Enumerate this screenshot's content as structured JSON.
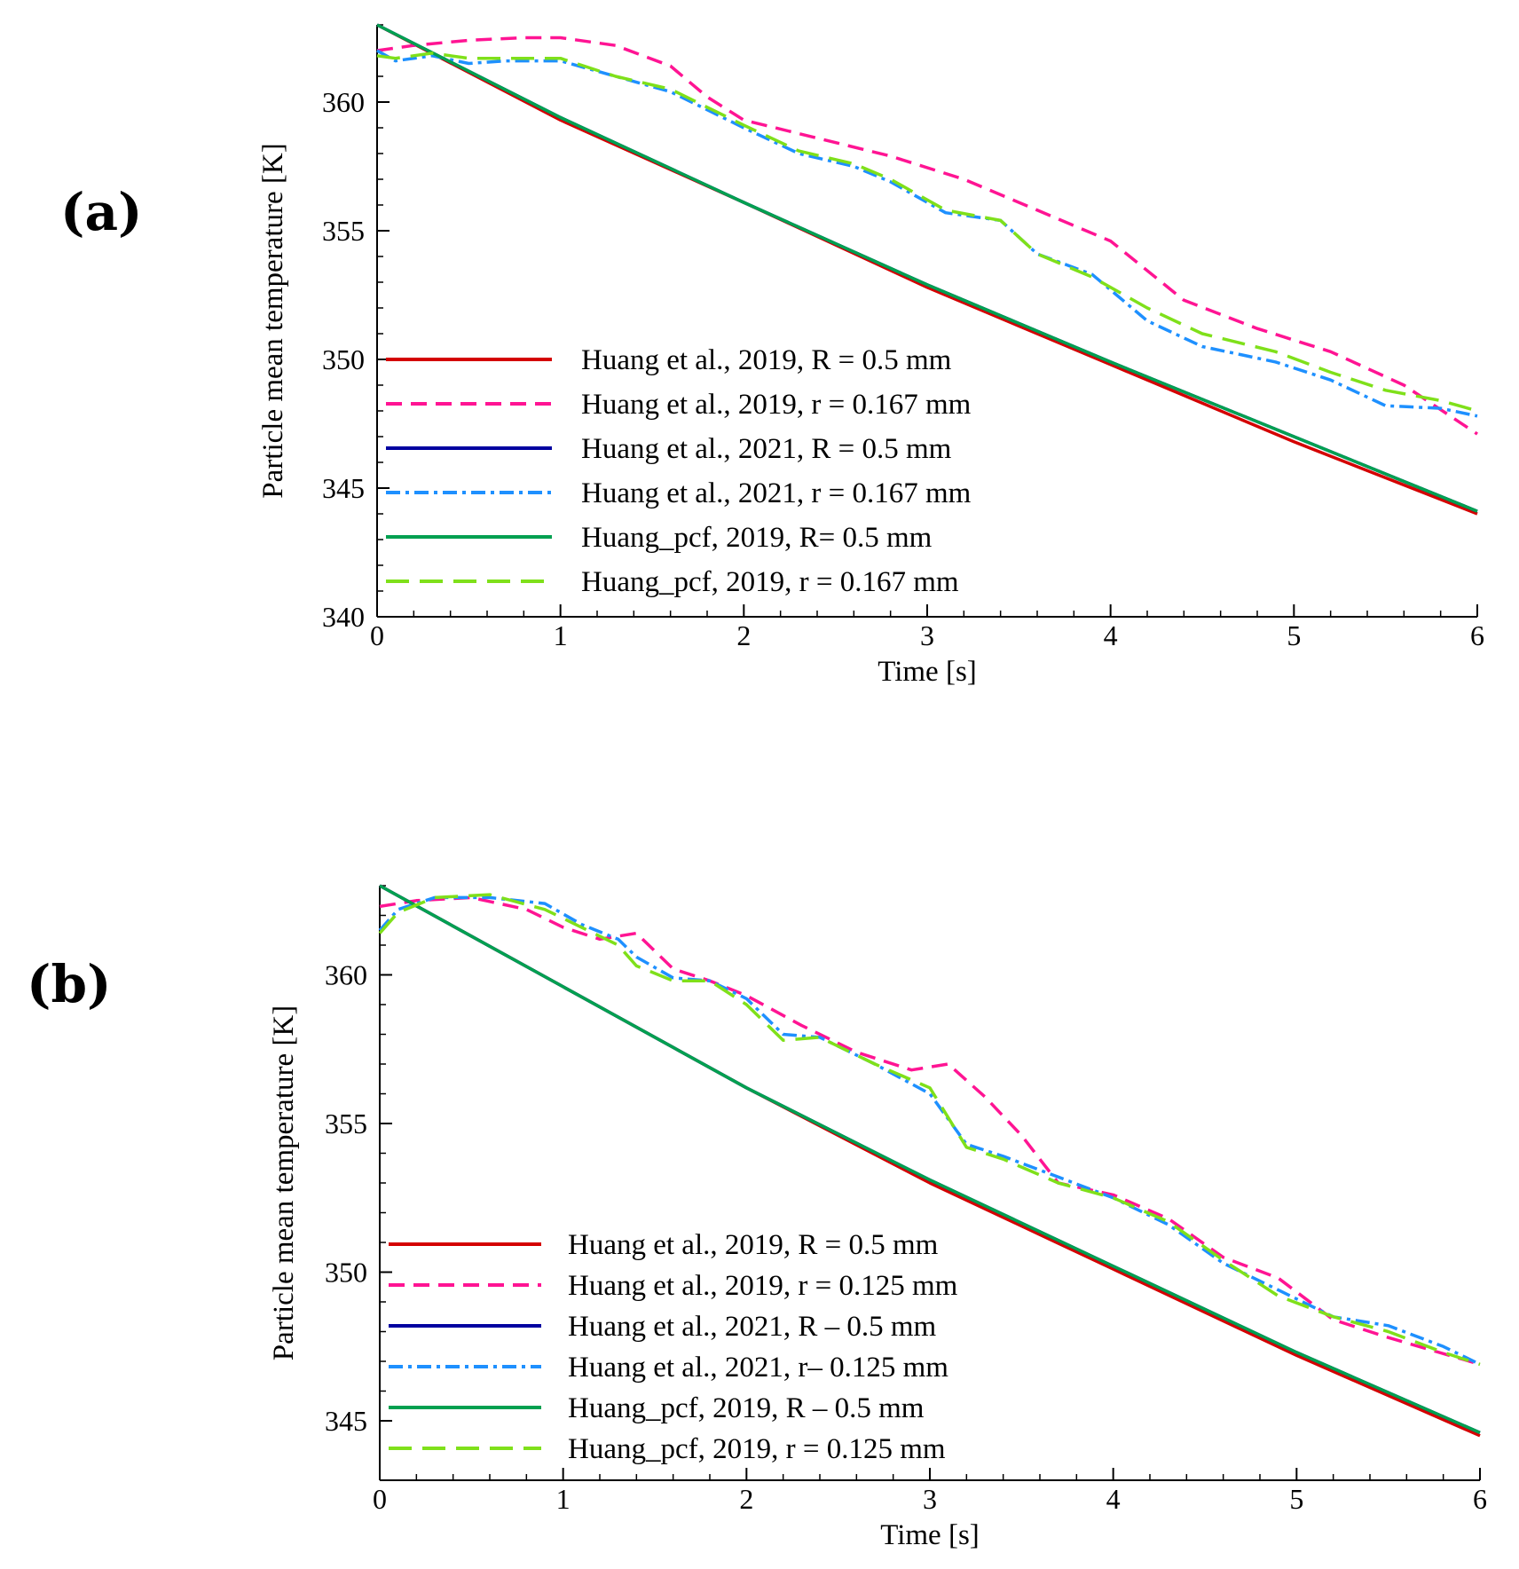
{
  "panels": [
    {
      "label": "(a)"
    },
    {
      "label": "(b)"
    }
  ],
  "colors": {
    "red": "#d40000",
    "pink": "#ff1493",
    "navy": "#0000a0",
    "blue": "#1e90ff",
    "green": "#00a050",
    "lime": "#7fe01a",
    "axis": "#000000"
  },
  "chart_data": [
    {
      "type": "line",
      "panel": "(a)",
      "xlabel": "Time [s]",
      "ylabel": "Particle mean temperature [K]",
      "xlim": [
        0,
        6
      ],
      "ylim": [
        340,
        363
      ],
      "xticks": [
        0,
        1,
        2,
        3,
        4,
        5,
        6
      ],
      "yticks": [
        340,
        345,
        350,
        355,
        360
      ],
      "legend_position": "lower-left",
      "series": [
        {
          "name": "Huang et al., 2019, R = 0.5 mm",
          "style": "solid",
          "color": "red",
          "x": [
            0,
            1,
            2,
            3,
            4,
            5,
            6
          ],
          "y": [
            363,
            359.3,
            356.1,
            352.8,
            349.8,
            346.8,
            344.0
          ]
        },
        {
          "name": "Huang et al., 2019, r = 0.167 mm",
          "style": "dash",
          "color": "pink",
          "x": [
            0,
            0.2,
            0.5,
            0.8,
            1.0,
            1.3,
            1.6,
            1.8,
            2.0,
            2.4,
            2.8,
            3.2,
            3.6,
            4.0,
            4.4,
            4.8,
            5.2,
            5.6,
            6.0
          ],
          "y": [
            362,
            362.2,
            362.4,
            362.5,
            362.5,
            362.2,
            361.4,
            360.2,
            359.3,
            358.6,
            357.9,
            357.0,
            355.8,
            354.6,
            352.3,
            351.2,
            350.3,
            349.0,
            347.1
          ]
        },
        {
          "name": "Huang et al., 2021, R = 0.5 mm",
          "style": "solid",
          "color": "navy",
          "x": [
            0,
            1,
            2,
            3,
            4,
            5,
            6
          ],
          "y": [
            363,
            359.4,
            356.1,
            352.9,
            349.9,
            347.0,
            344.1
          ]
        },
        {
          "name": "Huang et al., 2021, r = 0.167 mm",
          "style": "dashdot",
          "color": "blue",
          "x": [
            0,
            0.1,
            0.3,
            0.5,
            0.7,
            1.0,
            1.3,
            1.6,
            2.0,
            2.3,
            2.6,
            2.8,
            3.1,
            3.4,
            3.6,
            3.9,
            4.2,
            4.5,
            4.9,
            5.2,
            5.5,
            5.8,
            6.0
          ],
          "y": [
            362,
            361.6,
            361.8,
            361.5,
            361.6,
            361.6,
            361.0,
            360.4,
            359.0,
            358.0,
            357.5,
            356.9,
            355.7,
            355.4,
            354.1,
            353.3,
            351.5,
            350.5,
            349.9,
            349.2,
            348.2,
            348.1,
            347.8
          ]
        },
        {
          "name": "Huang_pcf, 2019, R= 0.5 mm",
          "style": "solid",
          "color": "green",
          "x": [
            0,
            1,
            2,
            3,
            4,
            5,
            6
          ],
          "y": [
            363,
            359.4,
            356.1,
            352.9,
            349.9,
            347.0,
            344.1
          ]
        },
        {
          "name": "Huang_pcf, 2019, r = 0.167 mm",
          "style": "longdash",
          "color": "lime",
          "x": [
            0,
            0.1,
            0.3,
            0.5,
            0.7,
            1.0,
            1.3,
            1.6,
            2.0,
            2.3,
            2.6,
            2.8,
            3.1,
            3.4,
            3.6,
            3.9,
            4.2,
            4.5,
            4.9,
            5.2,
            5.5,
            5.8,
            6.0
          ],
          "y": [
            361.8,
            361.7,
            361.9,
            361.7,
            361.7,
            361.7,
            361.0,
            360.5,
            359.1,
            358.1,
            357.6,
            357.0,
            355.8,
            355.4,
            354.1,
            353.2,
            352.0,
            351.0,
            350.3,
            349.5,
            348.8,
            348.4,
            348.0
          ]
        }
      ]
    },
    {
      "type": "line",
      "panel": "(b)",
      "xlabel": "Time [s]",
      "ylabel": "Particle mean temperature [K]",
      "xlim": [
        0,
        6
      ],
      "ylim": [
        343,
        363
      ],
      "xticks": [
        0,
        1,
        2,
        3,
        4,
        5,
        6
      ],
      "yticks": [
        345,
        350,
        355,
        360
      ],
      "legend_position": "lower-left",
      "series": [
        {
          "name": "Huang et al., 2019, R = 0.5 mm",
          "style": "solid",
          "color": "red",
          "x": [
            0,
            1,
            2,
            3,
            4,
            5,
            6
          ],
          "y": [
            363,
            359.6,
            356.2,
            353.0,
            350.1,
            347.2,
            344.5
          ]
        },
        {
          "name": "Huang et al., 2019, r = 0.125 mm",
          "style": "dash",
          "color": "pink",
          "x": [
            0,
            0.2,
            0.5,
            0.8,
            1.0,
            1.2,
            1.4,
            1.6,
            1.8,
            2.0,
            2.3,
            2.6,
            2.9,
            3.1,
            3.3,
            3.5,
            3.7,
            4.0,
            4.3,
            4.6,
            4.9,
            5.2,
            5.5,
            6.0
          ],
          "y": [
            362.3,
            362.5,
            362.6,
            362.2,
            361.6,
            361.2,
            361.4,
            360.2,
            359.8,
            359.3,
            358.3,
            357.4,
            356.8,
            357.0,
            355.9,
            354.6,
            353.0,
            352.6,
            351.8,
            350.5,
            349.8,
            348.4,
            347.8,
            346.9
          ]
        },
        {
          "name": "Huang et al., 2021, R – 0.5 mm",
          "style": "solid",
          "color": "navy",
          "x": [
            0,
            1,
            2,
            3,
            4,
            5,
            6
          ],
          "y": [
            363,
            359.6,
            356.2,
            353.1,
            350.2,
            347.3,
            344.6
          ]
        },
        {
          "name": "Huang et al., 2021, r– 0.125 mm",
          "style": "dashdot",
          "color": "blue",
          "x": [
            0,
            0.1,
            0.3,
            0.6,
            0.9,
            1.1,
            1.3,
            1.4,
            1.6,
            1.8,
            2.0,
            2.2,
            2.4,
            2.7,
            3.0,
            3.2,
            3.4,
            3.7,
            4.0,
            4.3,
            4.6,
            4.9,
            5.2,
            5.5,
            5.8,
            6.0
          ],
          "y": [
            361.5,
            362.2,
            362.6,
            362.6,
            362.4,
            361.7,
            361.2,
            360.6,
            359.9,
            359.8,
            359.2,
            358.0,
            357.9,
            357.0,
            356.0,
            354.3,
            353.9,
            353.2,
            352.5,
            351.6,
            350.3,
            349.4,
            348.5,
            348.2,
            347.5,
            346.9
          ]
        },
        {
          "name": "Huang_pcf, 2019, R – 0.5 mm",
          "style": "solid",
          "color": "green",
          "x": [
            0,
            1,
            2,
            3,
            4,
            5,
            6
          ],
          "y": [
            363,
            359.6,
            356.2,
            353.1,
            350.2,
            347.3,
            344.6
          ]
        },
        {
          "name": "Huang_pcf, 2019, r = 0.125 mm",
          "style": "longdash",
          "color": "lime",
          "x": [
            0,
            0.1,
            0.3,
            0.6,
            0.9,
            1.1,
            1.3,
            1.4,
            1.6,
            1.8,
            2.0,
            2.2,
            2.4,
            2.7,
            3.0,
            3.2,
            3.4,
            3.7,
            4.0,
            4.3,
            4.6,
            4.9,
            5.2,
            5.5,
            5.8,
            6.0
          ],
          "y": [
            361.4,
            362.1,
            362.6,
            362.7,
            362.2,
            361.6,
            361.0,
            360.3,
            359.8,
            359.8,
            359.0,
            357.8,
            357.9,
            357.0,
            356.2,
            354.2,
            353.8,
            353.0,
            352.5,
            351.7,
            350.4,
            349.2,
            348.5,
            348.0,
            347.3,
            346.9
          ]
        }
      ]
    }
  ]
}
